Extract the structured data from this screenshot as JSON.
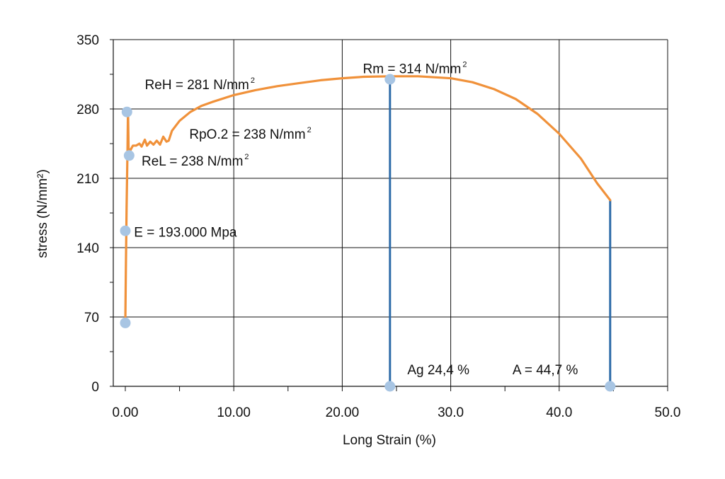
{
  "chart_data": {
    "type": "line",
    "title": "",
    "xlabel": "Long Strain (%)",
    "ylabel": "stress (N/mm²)",
    "xlim": [
      -0.3,
      50
    ],
    "ylim": [
      0,
      350
    ],
    "grid": true,
    "x_ticks": [
      {
        "value": 0,
        "label": "0.00"
      },
      {
        "value": 10,
        "label": "10.00"
      },
      {
        "value": 20,
        "label": "20.00"
      },
      {
        "value": 30,
        "label": "30.0"
      },
      {
        "value": 40,
        "label": "40.0"
      },
      {
        "value": 50,
        "label": "50.0"
      }
    ],
    "y_ticks": [
      {
        "value": 0,
        "label": "0"
      },
      {
        "value": 70,
        "label": "70"
      },
      {
        "value": 140,
        "label": "140"
      },
      {
        "value": 210,
        "label": "210"
      },
      {
        "value": 280,
        "label": "280"
      },
      {
        "value": 350,
        "label": "350"
      }
    ],
    "colors": {
      "curve": "#F0913A",
      "markers": "#A8C5E3",
      "drop_lines": "#2E6BA8",
      "grid": "#111111"
    },
    "series": [
      {
        "values": [
          [
            0.0,
            64
          ],
          [
            0.05,
            120
          ],
          [
            0.12,
            180
          ],
          [
            0.2,
            240
          ],
          [
            0.25,
            281
          ],
          [
            0.3,
            240
          ],
          [
            0.45,
            238
          ],
          [
            0.7,
            243
          ],
          [
            1.0,
            243
          ],
          [
            1.3,
            245
          ],
          [
            1.5,
            242
          ],
          [
            1.8,
            249
          ],
          [
            2.0,
            243
          ],
          [
            2.3,
            247
          ],
          [
            2.6,
            244
          ],
          [
            2.9,
            248
          ],
          [
            3.2,
            244
          ],
          [
            3.5,
            252
          ],
          [
            3.8,
            247
          ],
          [
            4.0,
            248
          ],
          [
            4.3,
            258
          ],
          [
            5.0,
            268
          ],
          [
            6.0,
            277
          ],
          [
            7.0,
            283
          ],
          [
            8.0,
            287
          ],
          [
            10.0,
            294
          ],
          [
            12.0,
            299
          ],
          [
            14.0,
            303
          ],
          [
            16.0,
            306
          ],
          [
            18.0,
            309
          ],
          [
            20.0,
            311
          ],
          [
            22.0,
            312.5
          ],
          [
            24.4,
            313
          ],
          [
            27.0,
            313
          ],
          [
            30.0,
            311
          ],
          [
            32.0,
            307
          ],
          [
            34.0,
            300
          ],
          [
            36.0,
            290
          ],
          [
            38.0,
            275
          ],
          [
            40.0,
            255
          ],
          [
            42.0,
            230
          ],
          [
            43.5,
            205
          ],
          [
            44.7,
            188
          ]
        ]
      }
    ],
    "drop_lines": [
      {
        "x": 24.4,
        "y_top": 313
      },
      {
        "x": 44.7,
        "y_top": 188
      }
    ],
    "points": [
      {
        "x": 0.0,
        "y": 64
      },
      {
        "x": 0.0,
        "y": 157
      },
      {
        "x": 0.35,
        "y": 233
      },
      {
        "x": 0.15,
        "y": 277
      },
      {
        "x": 24.4,
        "y": 310
      },
      {
        "x": 24.4,
        "y": 0
      },
      {
        "x": 44.7,
        "y": 0
      }
    ],
    "annotations": [
      {
        "text": "ReH = 281 N/mm",
        "sup": "2",
        "x": 1.8,
        "y": 300
      },
      {
        "text": "RpO.2 = 238 N/mm",
        "sup": "2",
        "x": 5.9,
        "y": 250
      },
      {
        "text": "ReL = 238 N/mm",
        "sup": "2",
        "x": 1.5,
        "y": 223
      },
      {
        "text": "E = 193.000 Mpa",
        "sup": "",
        "x": 0.8,
        "y": 151
      },
      {
        "text": "Rm = 314 N/mm",
        "sup": "2",
        "x": 21.9,
        "y": 316
      },
      {
        "text": "Ag 24,4 %",
        "sup": "",
        "x": 26.0,
        "y": 12
      },
      {
        "text": "A = 44,7 %",
        "sup": "",
        "x": 35.7,
        "y": 12
      }
    ]
  }
}
